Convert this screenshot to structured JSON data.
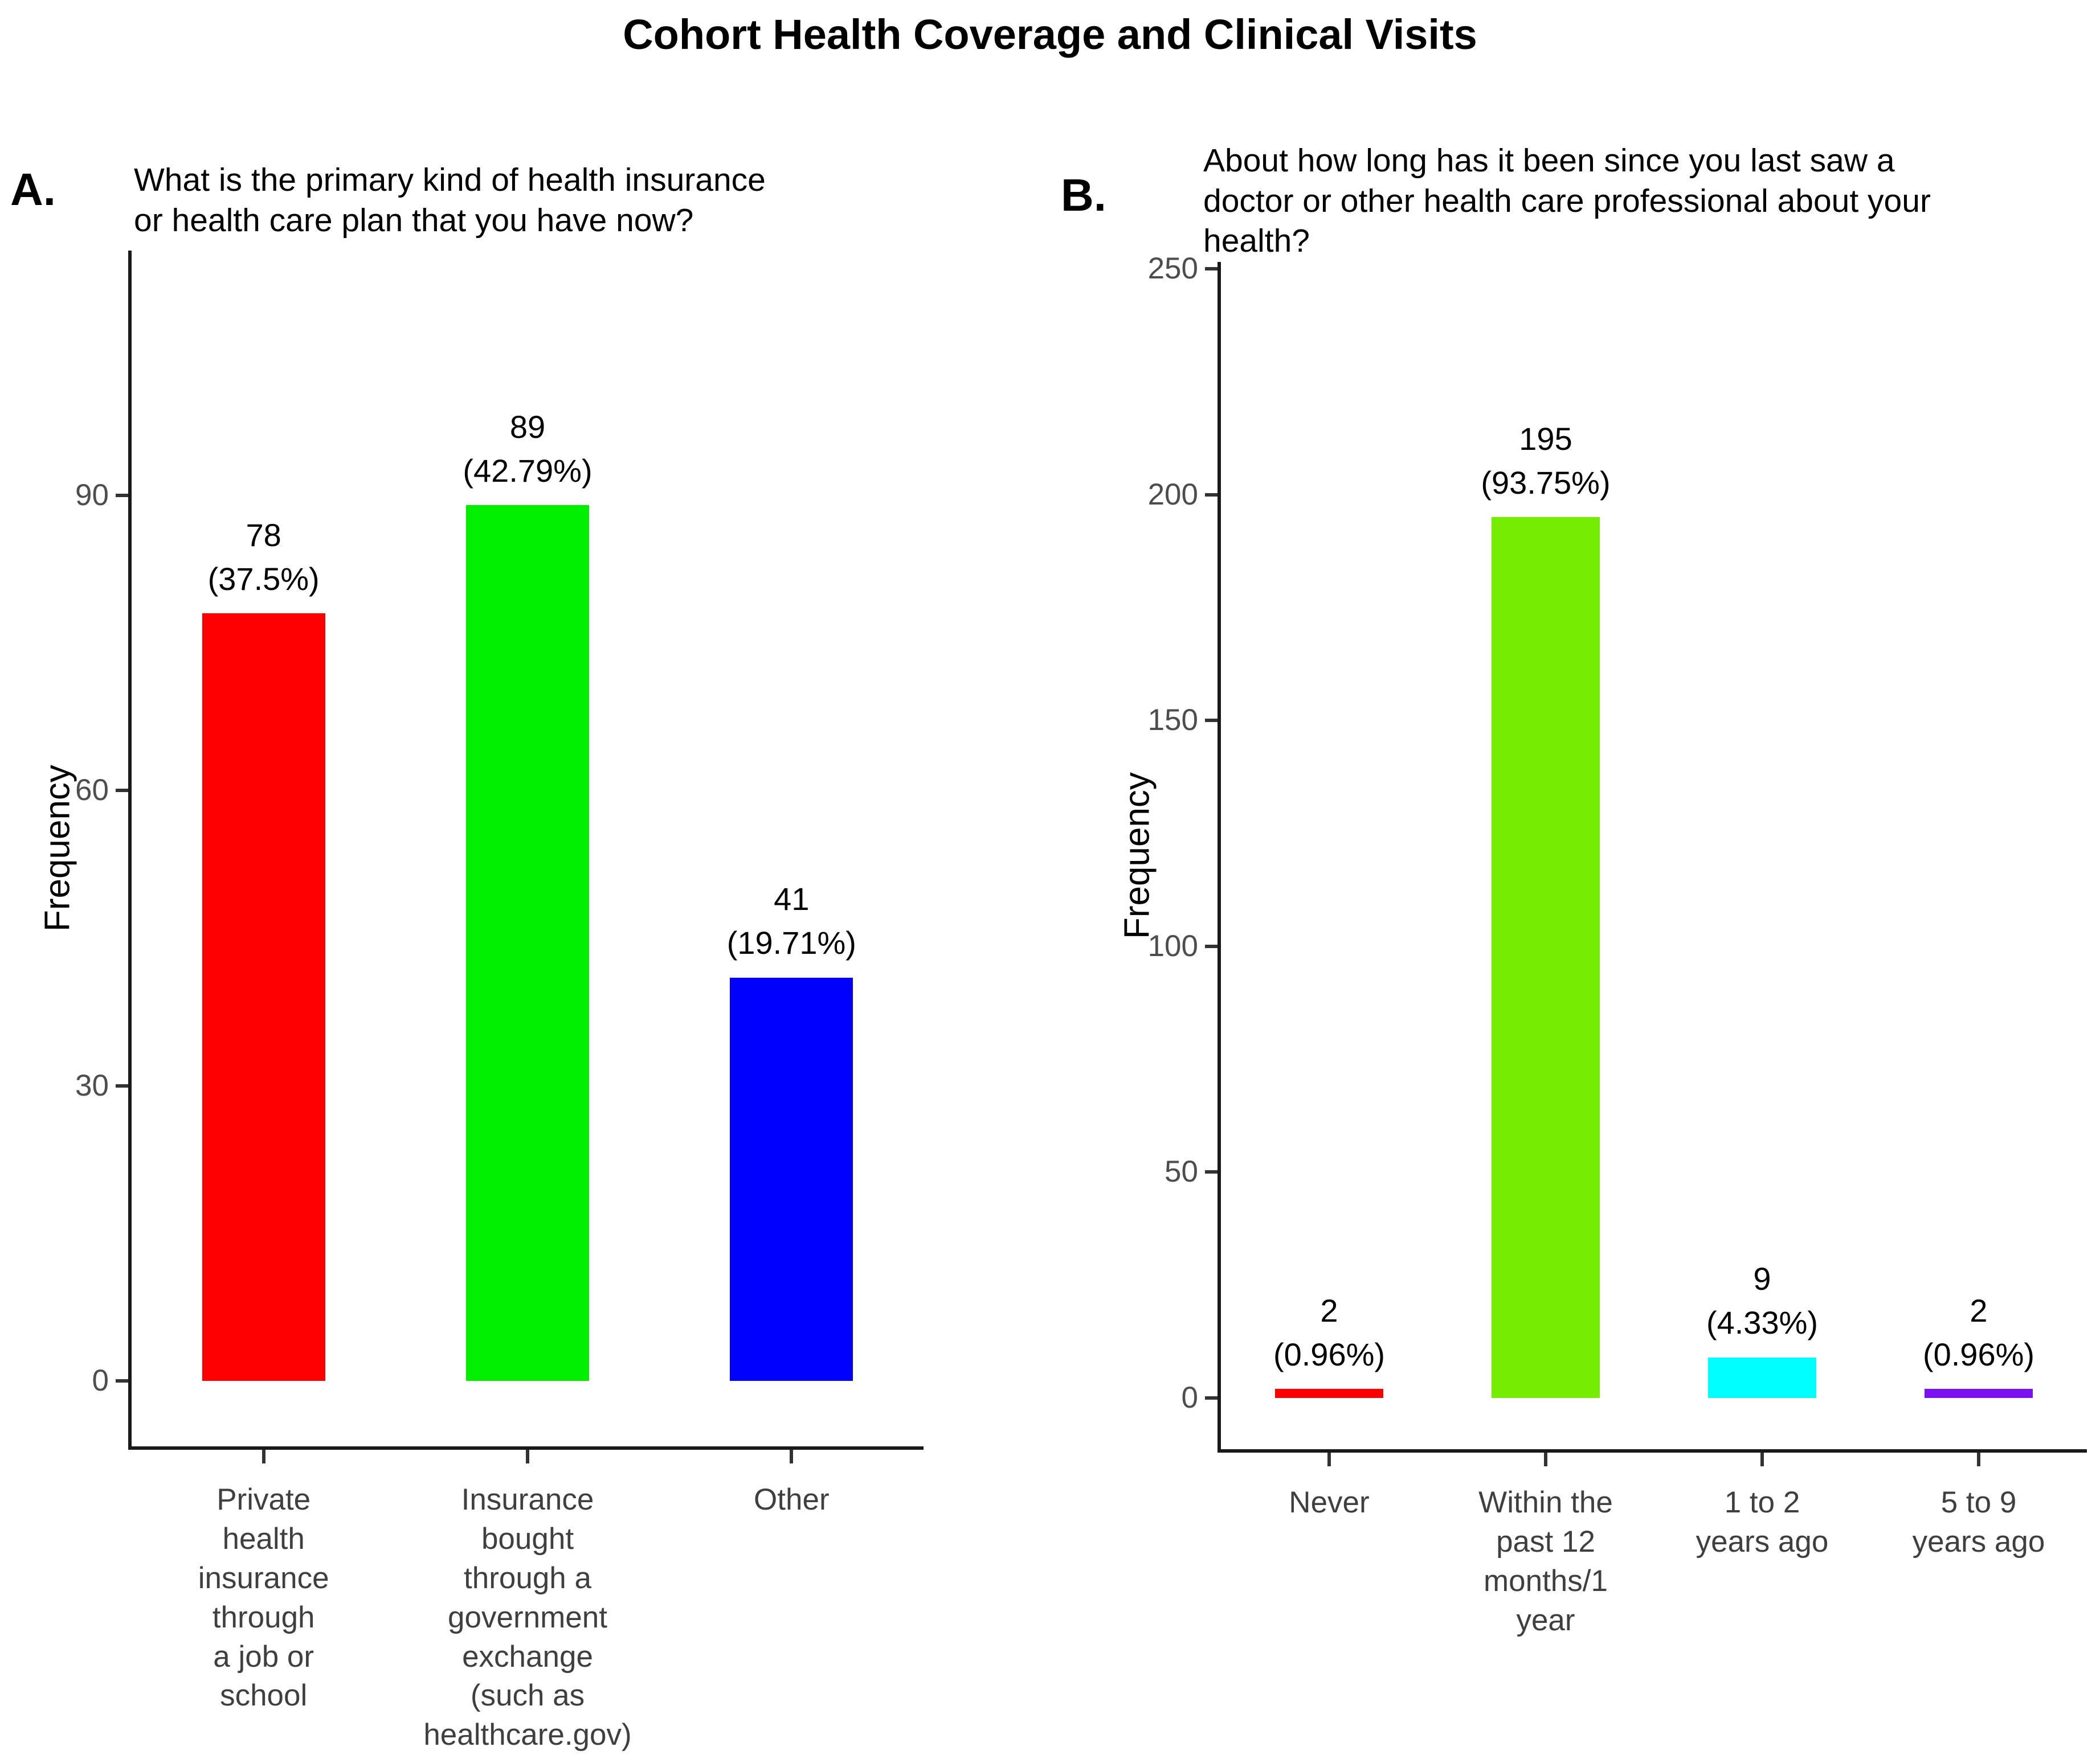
{
  "figure": {
    "title": "Cohort Health Coverage and Clinical Visits"
  },
  "panels": [
    {
      "letter": "A.",
      "question": "What is the primary kind of health insurance\nor health care plan that you have now?",
      "ylabel": "Frequency"
    },
    {
      "letter": "B.",
      "question": "About how long has it been since you last saw a\ndoctor or other health care professional about your\nhealth?",
      "ylabel": "Frequency"
    }
  ],
  "chart_data": [
    {
      "type": "bar",
      "panel": "A",
      "title": "What is the primary kind of health insurance or health care plan that you have now?",
      "xlabel": "",
      "ylabel": "Frequency",
      "ylim": [
        0,
        115
      ],
      "yticks": [
        0,
        30,
        60,
        90
      ],
      "grid": false,
      "legend_position": "none",
      "categories": [
        "Private health insurance through a job or school",
        "Insurance bought through a government exchange (such as healthcare.gov)",
        "Other"
      ],
      "category_display": [
        "Private\nhealth\ninsurance\nthrough\na job or\nschool",
        "Insurance\nbought\nthrough a\ngovernment\nexchange\n(such as\nhealthcare.gov)",
        "Other"
      ],
      "values": [
        78,
        89,
        41
      ],
      "count_labels": [
        "78",
        "89",
        "41"
      ],
      "percent_labels": [
        "(37.5%)",
        "(42.79%)",
        "(19.71%)"
      ],
      "bar_colors": [
        "#ff0000",
        "#00ee00",
        "#0000ff"
      ]
    },
    {
      "type": "bar",
      "panel": "B",
      "title": "About how long has it been since you last saw a doctor or other health care professional about your health?",
      "xlabel": "",
      "ylabel": "Frequency",
      "ylim": [
        0,
        252
      ],
      "yticks": [
        0,
        50,
        100,
        150,
        200,
        250
      ],
      "grid": false,
      "legend_position": "none",
      "categories": [
        "Never",
        "Within the past 12 months/1 year",
        "1 to 2 years ago",
        "5 to 9 years ago"
      ],
      "category_display": [
        "Never",
        "Within the\npast 12\nmonths/1\nyear",
        "1 to 2\nyears ago",
        "5 to 9\nyears ago"
      ],
      "values": [
        2,
        195,
        9,
        2
      ],
      "count_labels": [
        "2",
        "195",
        "9",
        "2"
      ],
      "percent_labels": [
        "(0.96%)",
        "(93.75%)",
        "(4.33%)",
        "(0.96%)"
      ],
      "bar_colors": [
        "#ff0000",
        "#74ed00",
        "#00ffff",
        "#7b11f0"
      ]
    }
  ]
}
